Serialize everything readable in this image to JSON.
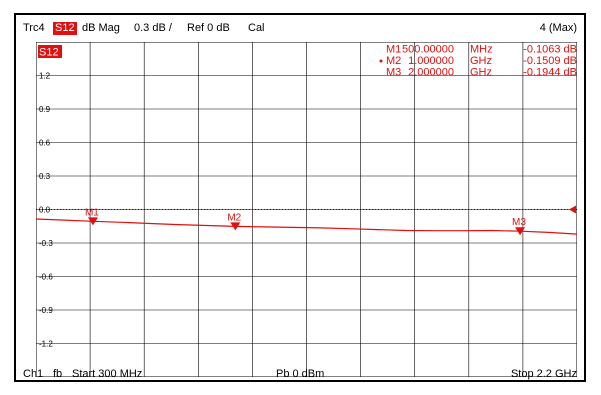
{
  "header": {
    "trace": "Trc4",
    "param": "S12",
    "format": "dB Mag",
    "scale": "0.3 dB /",
    "ref": "Ref 0 dB",
    "cal": "Cal",
    "channel_count": "4 (Max)"
  },
  "trace_badge": "S12",
  "footer": {
    "ch": "Ch1",
    "fb": "fb",
    "start": "Start  300 MHz",
    "power": "Pb   0 dBm",
    "stop": "Stop  2.2 GHz"
  },
  "markers_table": [
    {
      "name": "M1",
      "active": false,
      "freq": "500.00000",
      "unit": "MHz",
      "value": "-0.1063 dB"
    },
    {
      "name": "M2",
      "active": true,
      "freq": "1.000000",
      "unit": "GHz",
      "value": "-0.1509 dB"
    },
    {
      "name": "M3",
      "active": false,
      "freq": "2.000000",
      "unit": "GHz",
      "value": "-0.1944 dB"
    }
  ],
  "colors": {
    "trace": "#e01010",
    "grid": "#000000",
    "badge": "#e01010"
  },
  "chart_data": {
    "type": "line",
    "title": "",
    "xlabel": "",
    "ylabel": "",
    "xlim": [
      300,
      2200
    ],
    "ylim": [
      -1.5,
      1.5
    ],
    "ytick_labels": [
      "1.2",
      "0.9",
      "0.6",
      "0.3",
      "0.0",
      "-0.3",
      "-0.6",
      "-0.9",
      "-1.2"
    ],
    "yticks": [
      1.2,
      0.9,
      0.6,
      0.3,
      0.0,
      -0.3,
      -0.6,
      -0.9,
      -1.2
    ],
    "reference_level": 0.0,
    "grid": true,
    "series": [
      {
        "x": [
          300,
          400,
          500,
          600,
          700,
          800,
          900,
          1000,
          1100,
          1200,
          1300,
          1400,
          1500,
          1600,
          1700,
          1800,
          1900,
          2000,
          2100,
          2200
        ],
        "values": [
          -0.085,
          -0.095,
          -0.106,
          -0.115,
          -0.125,
          -0.135,
          -0.143,
          -0.151,
          -0.156,
          -0.16,
          -0.165,
          -0.172,
          -0.18,
          -0.188,
          -0.19,
          -0.19,
          -0.188,
          -0.194,
          -0.205,
          -0.22
        ]
      }
    ],
    "markers": [
      {
        "label": "M1",
        "x": 500,
        "y": -0.1063
      },
      {
        "label": "M2",
        "x": 1000,
        "y": -0.1509
      },
      {
        "label": "M3",
        "x": 2000,
        "y": -0.1944
      }
    ]
  }
}
